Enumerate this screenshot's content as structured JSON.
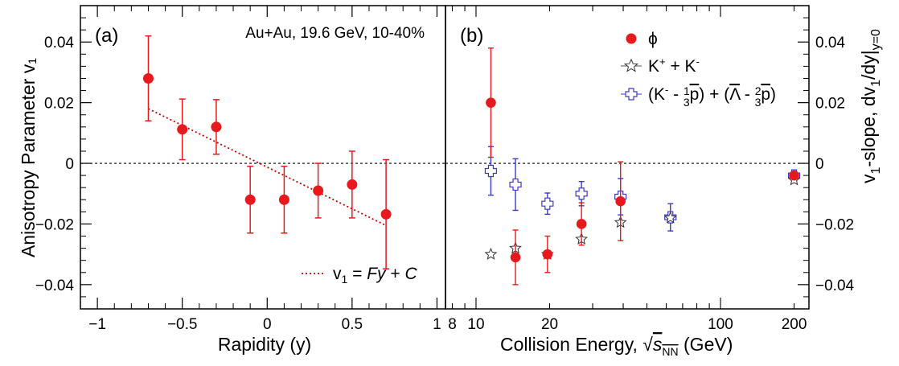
{
  "chart_data": [
    {
      "panel": "(a)",
      "type": "scatter",
      "info": "Au+Au, 19.6 GeV, 10-40%",
      "xlabel": "Rapidity (y)",
      "ylabel": "Anisotropy Parameter v₁",
      "xlim": [
        -1.1,
        1.05
      ],
      "ylim": [
        -0.048,
        0.052
      ],
      "xticks": [
        -1,
        -0.5,
        0,
        0.5,
        1
      ],
      "xtick_labels": [
        "−1",
        "−0.5",
        "0",
        "0.5",
        "1"
      ],
      "yticks": [
        -0.04,
        -0.02,
        0,
        0.02,
        0.04
      ],
      "ytick_labels": [
        "−0.04",
        "−0.02",
        "0",
        "0.02",
        "0.04"
      ],
      "series": [
        {
          "name": "ϕ",
          "color": "#e8191c",
          "x": [
            -0.7,
            -0.5,
            -0.3,
            -0.1,
            0.1,
            0.3,
            0.5,
            0.7
          ],
          "y": [
            0.028,
            0.0112,
            0.012,
            -0.012,
            -0.012,
            -0.009,
            -0.007,
            -0.0168
          ],
          "err": [
            0.014,
            0.01,
            0.009,
            0.011,
            0.011,
            0.009,
            0.011,
            0.018
          ]
        }
      ],
      "fit": {
        "label_prefix": "v",
        "label_sub": "1",
        "label_mid": " = ",
        "label_F": "Fy",
        "label_plus": " + ",
        "label_C": "C",
        "x_range": [
          -0.7,
          0.7
        ],
        "y_range": [
          0.018,
          -0.0205
        ],
        "color": "#cc0000"
      },
      "zero_line": true
    },
    {
      "panel": "(b)",
      "type": "scatter",
      "xlabel": "Collision Energy, √s",
      "xlabel_sub": "NN",
      "xlabel_unit": " (GeV)",
      "ylabel": "v₁-slope, dv₁/dy|",
      "ylabel_sub": "y=0",
      "xscale": "log",
      "xlim": [
        7.5,
        230
      ],
      "ylim": [
        -0.048,
        0.052
      ],
      "xticks": [
        8,
        10,
        20,
        100,
        200
      ],
      "xtick_labels": [
        "8",
        "10",
        "20",
        "100",
        "200"
      ],
      "yticks": [
        -0.04,
        -0.02,
        0,
        0.02,
        0.04
      ],
      "ytick_labels": [
        "−0.04",
        "−0.02",
        "0",
        "0.02",
        "0.04"
      ],
      "legend": [
        {
          "label": "ϕ",
          "marker": "circle",
          "color": "#e8191c"
        },
        {
          "label": "K⁺ + K⁻",
          "marker": "star",
          "color": "#555555"
        },
        {
          "label": "(K⁻ - ⅓p̅) + (Λ̅ - ⅔p̅)",
          "marker": "cross",
          "color": "#3a3ac8"
        }
      ],
      "series": [
        {
          "name": "ϕ",
          "color": "#e8191c",
          "x": [
            11.5,
            14.5,
            19.6,
            27,
            39,
            200
          ],
          "y": [
            0.02,
            -0.031,
            -0.03,
            -0.02,
            -0.0125,
            -0.004
          ],
          "err": [
            0.018,
            0.009,
            0.006,
            0.007,
            0.013,
            0.001
          ]
        },
        {
          "name": "K⁺ + K⁻",
          "color": "#555555",
          "x": [
            11.5,
            14.5,
            19.6,
            27,
            39,
            62.4,
            200
          ],
          "y": [
            -0.03,
            -0.028,
            -0.03,
            -0.025,
            -0.0195,
            -0.018,
            -0.0055
          ],
          "err": [
            0.001,
            0.001,
            0.001,
            0.001,
            0.001,
            0.001,
            0.001
          ]
        },
        {
          "name": "(K⁻ - ⅓p̅) + (Λ̅ - ⅔p̅)",
          "color": "#3a3ac8",
          "x": [
            11.5,
            14.5,
            19.6,
            27,
            39,
            62.4,
            200
          ],
          "y": [
            -0.0025,
            -0.007,
            -0.0133,
            -0.01,
            -0.011,
            -0.0178,
            -0.004
          ],
          "err": [
            0.008,
            0.0085,
            0.0035,
            0.004,
            0.006,
            0.0045,
            0.001
          ]
        }
      ],
      "zero_line": true
    }
  ]
}
